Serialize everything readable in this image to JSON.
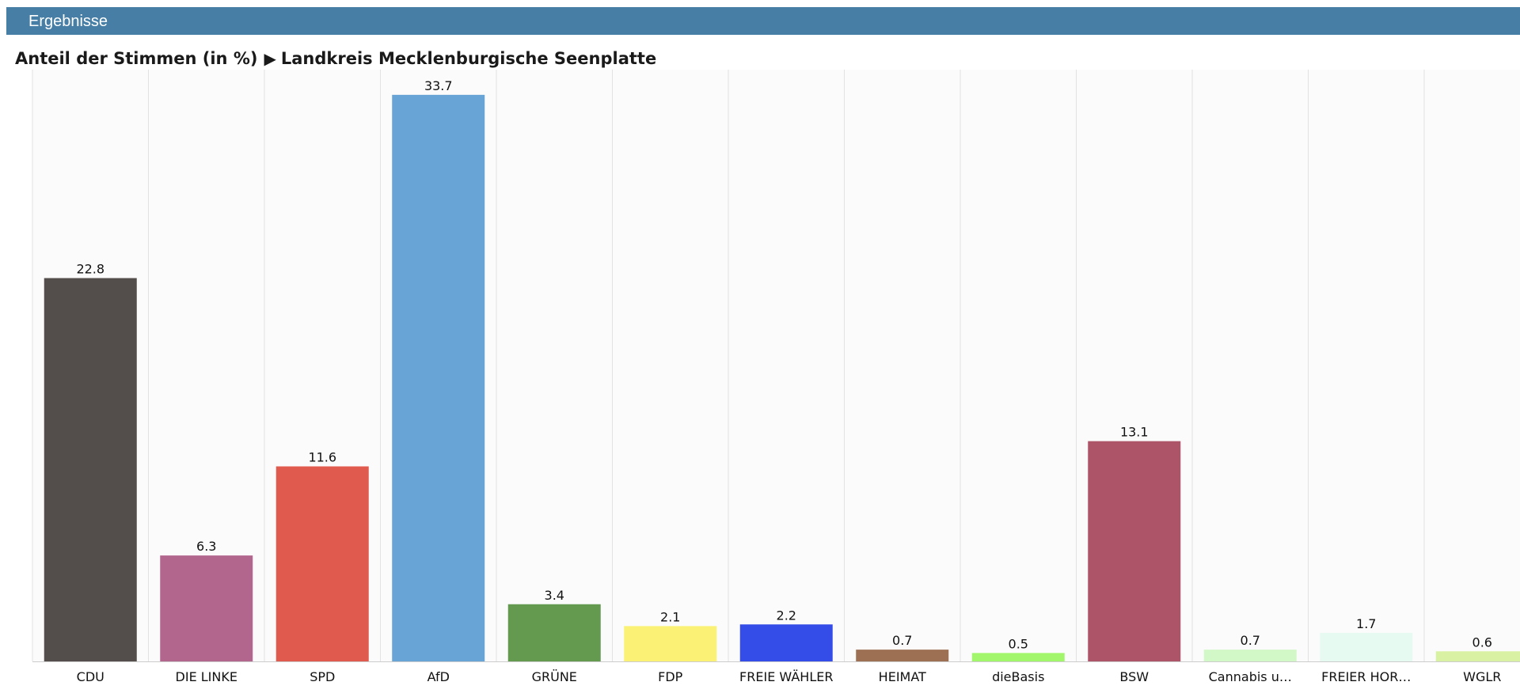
{
  "header": {
    "title": "Ergebnisse"
  },
  "chart_data": {
    "type": "bar",
    "title_prefix": "Anteil der Stimmen (in %)",
    "title_separator": "▶",
    "title_region": "Landkreis Mecklenburgische Seenplatte",
    "categories": [
      "CDU",
      "DIE LINKE",
      "SPD",
      "AfD",
      "GRÜNE",
      "FDP",
      "FREIE WÄHLER",
      "HEIMAT",
      "dieBasis",
      "BSW",
      "Cannabis u…",
      "FREIER HOR…",
      "WGLR"
    ],
    "values": [
      22.8,
      6.3,
      11.6,
      33.7,
      3.4,
      2.1,
      2.2,
      0.7,
      0.5,
      13.1,
      0.7,
      1.7,
      0.6
    ],
    "value_labels": [
      "22.8",
      "6.3",
      "11.6",
      "33.7",
      "3.4",
      "2.1",
      "2.2",
      "0.7",
      "0.5",
      "13.1",
      "0.7",
      "1.7",
      "0.6"
    ],
    "colors": [
      "#534d4b",
      "#b3668d",
      "#e05a4e",
      "#68a5d6",
      "#639a4f",
      "#fbf174",
      "#344ce8",
      "#9d6f53",
      "#a2f66b",
      "#ae5469",
      "#d2f8c8",
      "#e7faf1",
      "#d9f1a2"
    ],
    "ylim": [
      0,
      35
    ],
    "xlabel": "",
    "ylabel": "",
    "grid": true
  }
}
